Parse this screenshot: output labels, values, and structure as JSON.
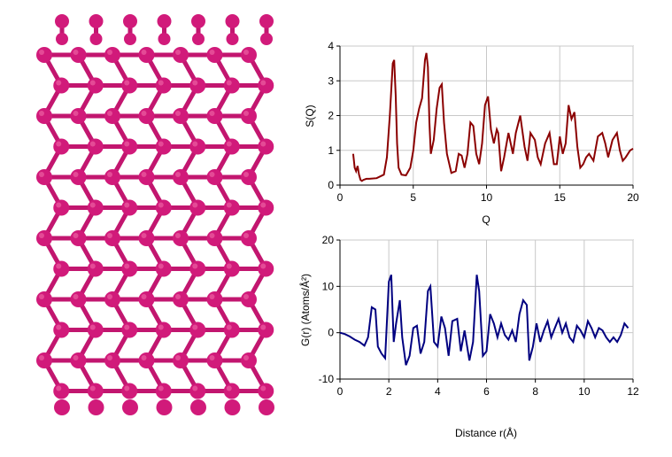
{
  "structure": {
    "atom_color": "#d11a7a",
    "bond_color": "#c2166f",
    "description_icon": "crystal-lattice-model"
  },
  "chart_data": [
    {
      "type": "line",
      "xlabel": "Q",
      "ylabel": "S(Q)",
      "xlim": [
        0,
        20
      ],
      "ylim": [
        0,
        4
      ],
      "xticks": [
        "0",
        "5",
        "10",
        "15",
        "20"
      ],
      "yticks": [
        "0",
        "1",
        "2",
        "3",
        "4"
      ],
      "grid": true,
      "color": "#8b0000",
      "series": [
        {
          "x": [
            0.9,
            1.0,
            1.1,
            1.2,
            1.3,
            1.4,
            1.5,
            1.6,
            1.8,
            2.0,
            2.5,
            3.0,
            3.2,
            3.4,
            3.6,
            3.7,
            3.8,
            3.9,
            4.0,
            4.2,
            4.5,
            4.8,
            5.0,
            5.2,
            5.4,
            5.6,
            5.8,
            5.9,
            6.0,
            6.1,
            6.2,
            6.4,
            6.6,
            6.8,
            6.95,
            7.1,
            7.3,
            7.6,
            7.9,
            8.1,
            8.3,
            8.5,
            8.7,
            8.9,
            9.1,
            9.3,
            9.5,
            9.7,
            9.9,
            10.1,
            10.3,
            10.5,
            10.7,
            10.8,
            11.0,
            11.2,
            11.5,
            11.8,
            12.0,
            12.3,
            12.6,
            12.8,
            13.0,
            13.3,
            13.5,
            13.7,
            14.0,
            14.3,
            14.6,
            14.8,
            15.0,
            15.2,
            15.4,
            15.6,
            15.8,
            16.0,
            16.2,
            16.4,
            16.6,
            16.8,
            17.0,
            17.3,
            17.6,
            17.9,
            18.1,
            18.3,
            18.6,
            18.9,
            19.1,
            19.3,
            19.5,
            19.8,
            20.0
          ],
          "y": [
            0.9,
            0.5,
            0.4,
            0.55,
            0.3,
            0.15,
            0.12,
            0.15,
            0.18,
            0.18,
            0.2,
            0.3,
            0.8,
            2.0,
            3.5,
            3.6,
            2.6,
            1.2,
            0.5,
            0.3,
            0.28,
            0.5,
            1.0,
            1.8,
            2.2,
            2.5,
            3.6,
            3.8,
            3.4,
            1.8,
            0.9,
            1.3,
            2.2,
            2.8,
            2.9,
            1.8,
            0.9,
            0.35,
            0.4,
            0.9,
            0.85,
            0.5,
            0.9,
            1.8,
            1.7,
            0.9,
            0.6,
            1.2,
            2.3,
            2.55,
            1.6,
            1.2,
            1.6,
            1.5,
            0.4,
            0.8,
            1.5,
            0.9,
            1.5,
            2.0,
            1.1,
            0.7,
            1.5,
            1.3,
            0.8,
            0.6,
            1.2,
            1.5,
            0.6,
            0.6,
            1.4,
            0.9,
            1.2,
            2.3,
            1.9,
            2.1,
            1.1,
            0.5,
            0.6,
            0.8,
            0.9,
            0.7,
            1.4,
            1.5,
            1.2,
            0.8,
            1.3,
            1.5,
            1.0,
            0.7,
            0.8,
            1.0,
            1.05
          ]
        }
      ]
    },
    {
      "type": "line",
      "xlabel": "Distance r(Å)",
      "ylabel": "G(r) (Atoms/Å²)",
      "xlim": [
        0,
        12
      ],
      "ylim": [
        -10,
        20
      ],
      "xticks": [
        "0",
        "2",
        "4",
        "6",
        "8",
        "10",
        "12"
      ],
      "yticks": [
        "-10",
        "0",
        "10",
        "20"
      ],
      "grid": true,
      "color": "#000080",
      "series": [
        {
          "x": [
            0.0,
            0.2,
            0.4,
            0.6,
            0.8,
            1.0,
            1.15,
            1.3,
            1.45,
            1.55,
            1.7,
            1.85,
            2.0,
            2.1,
            2.2,
            2.3,
            2.45,
            2.55,
            2.7,
            2.85,
            3.0,
            3.15,
            3.3,
            3.45,
            3.6,
            3.7,
            3.85,
            4.0,
            4.15,
            4.3,
            4.45,
            4.6,
            4.8,
            4.95,
            5.1,
            5.3,
            5.45,
            5.6,
            5.7,
            5.85,
            6.0,
            6.15,
            6.3,
            6.45,
            6.6,
            6.75,
            6.9,
            7.05,
            7.2,
            7.35,
            7.5,
            7.65,
            7.75,
            7.9,
            8.05,
            8.2,
            8.35,
            8.5,
            8.65,
            8.8,
            8.95,
            9.1,
            9.25,
            9.4,
            9.55,
            9.7,
            9.85,
            10.0,
            10.15,
            10.3,
            10.45,
            10.6,
            10.75,
            10.9,
            11.05,
            11.2,
            11.35,
            11.5,
            11.65,
            11.8
          ],
          "y": [
            0,
            -0.3,
            -0.8,
            -1.5,
            -2.0,
            -2.8,
            -1.0,
            5.5,
            5.0,
            -3.0,
            -4.5,
            -5.5,
            11.0,
            12.5,
            -2.0,
            2.0,
            7.0,
            -1.0,
            -7.0,
            -5.0,
            1.0,
            1.5,
            -4.5,
            -2.0,
            9.0,
            10.0,
            -2.0,
            -3.0,
            3.5,
            1.0,
            -5.0,
            2.5,
            3.0,
            -4.0,
            0.5,
            -6.0,
            -2.0,
            12.5,
            9.0,
            -5.0,
            -4.0,
            4.0,
            2.0,
            -1.0,
            2.0,
            -0.5,
            -1.5,
            0.5,
            -2.0,
            4.0,
            7.0,
            6.0,
            -6.0,
            -3.0,
            2.0,
            -2.0,
            0.5,
            2.5,
            -1.0,
            1.0,
            3.0,
            0.0,
            2.0,
            -1.0,
            -2.0,
            1.5,
            0.5,
            -1.0,
            2.5,
            1.0,
            -1.0,
            1.0,
            0.5,
            -1.0,
            -2.0,
            -1.0,
            -2.0,
            -0.5,
            2.0,
            1.0
          ]
        }
      ]
    }
  ]
}
